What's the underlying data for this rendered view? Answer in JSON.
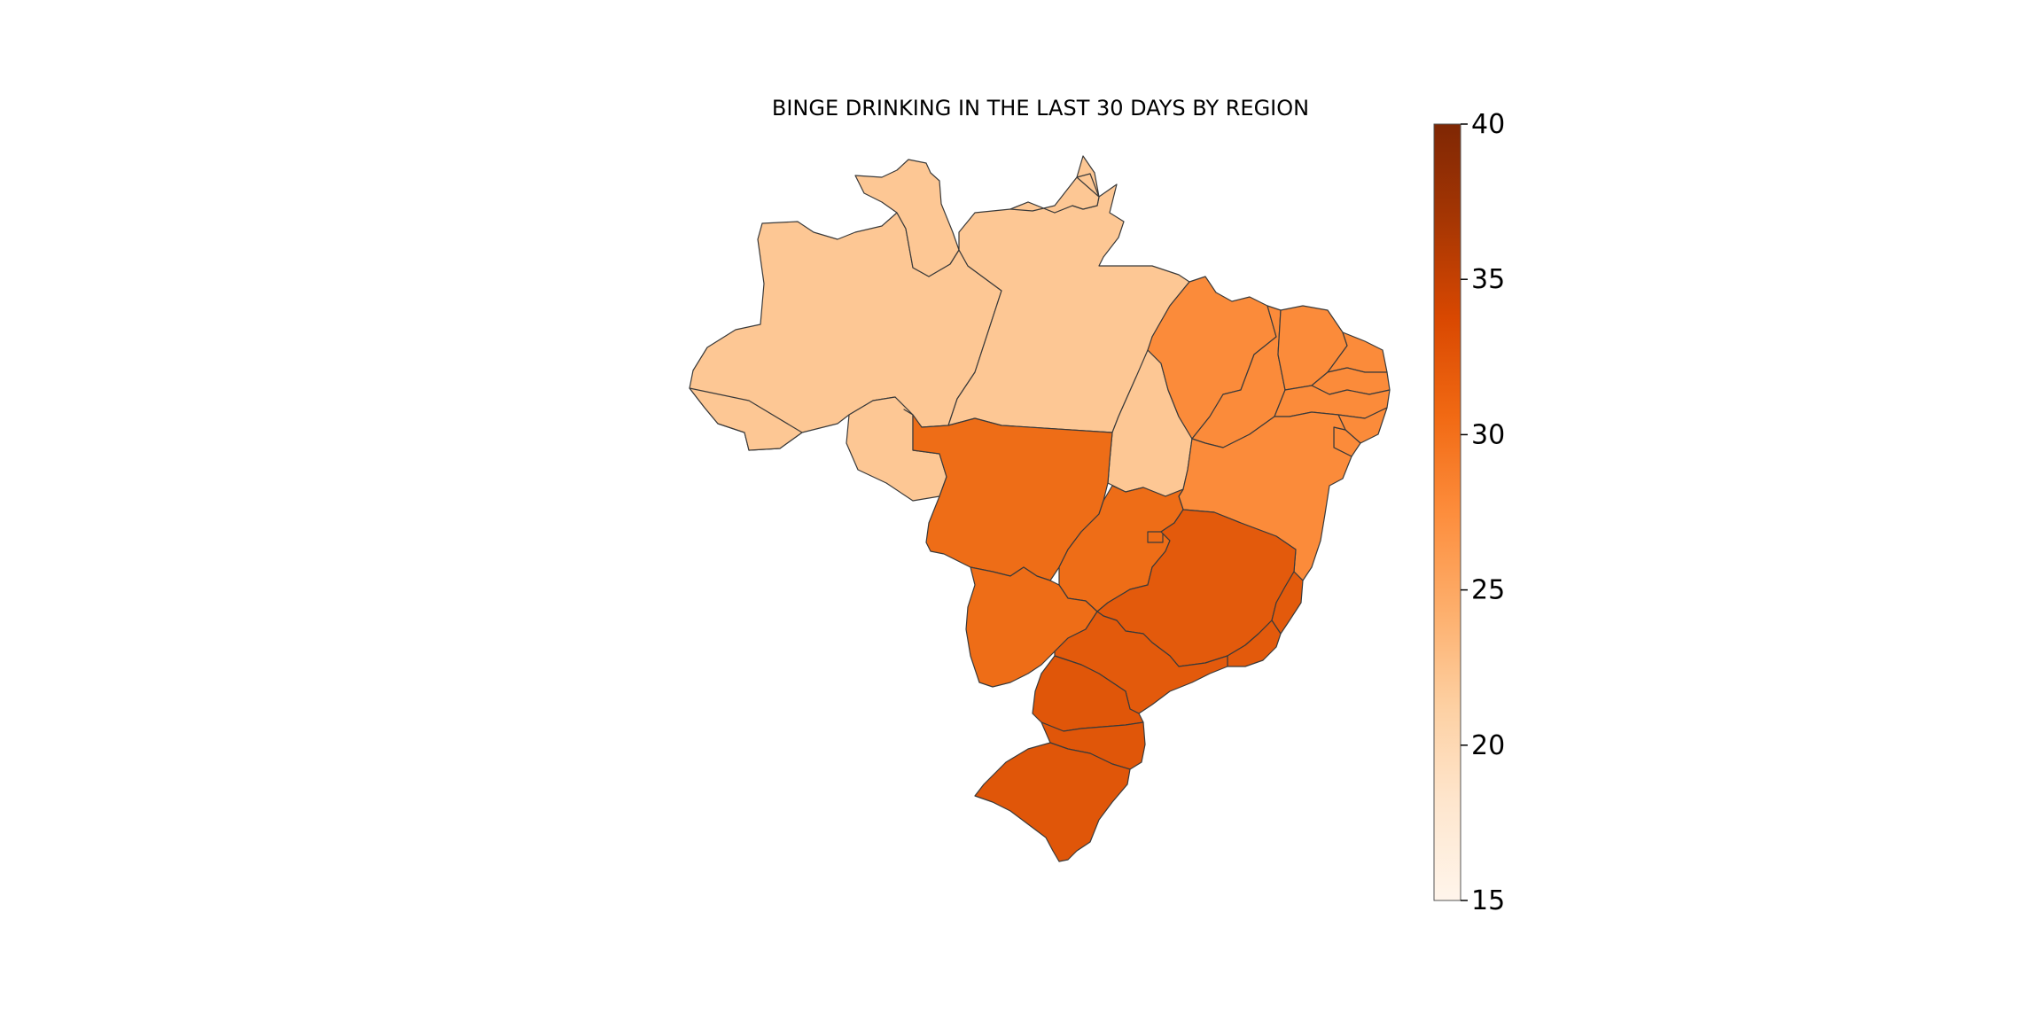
{
  "title": "BINGE DRINKING IN THE LAST 30 DAYS BY REGION",
  "colorbar": {
    "min": 15,
    "max": 40,
    "ticks": [
      "15",
      "20",
      "25",
      "30",
      "35",
      "40"
    ],
    "colormap": "Oranges",
    "stops": [
      "#fff5eb",
      "#fee6ce",
      "#fdd0a2",
      "#fdae6b",
      "#fd8d3c",
      "#f16913",
      "#d94801",
      "#a63603",
      "#7f2704"
    ]
  },
  "chart_data": {
    "type": "choropleth",
    "title": "BINGE DRINKING IN THE LAST 30 DAYS BY REGION",
    "regions": [
      {
        "region": "North",
        "value": 21.5,
        "color": "#fdc794"
      },
      {
        "region": "Northeast",
        "value": 27.0,
        "color": "#fb8b3a"
      },
      {
        "region": "Center-West",
        "value": 30.0,
        "color": "#ee6d17"
      },
      {
        "region": "Southeast",
        "value": 32.5,
        "color": "#e35a0c"
      },
      {
        "region": "South",
        "value": 32.5,
        "color": "#e05609"
      }
    ],
    "colorbar_range": [
      15,
      40
    ]
  }
}
